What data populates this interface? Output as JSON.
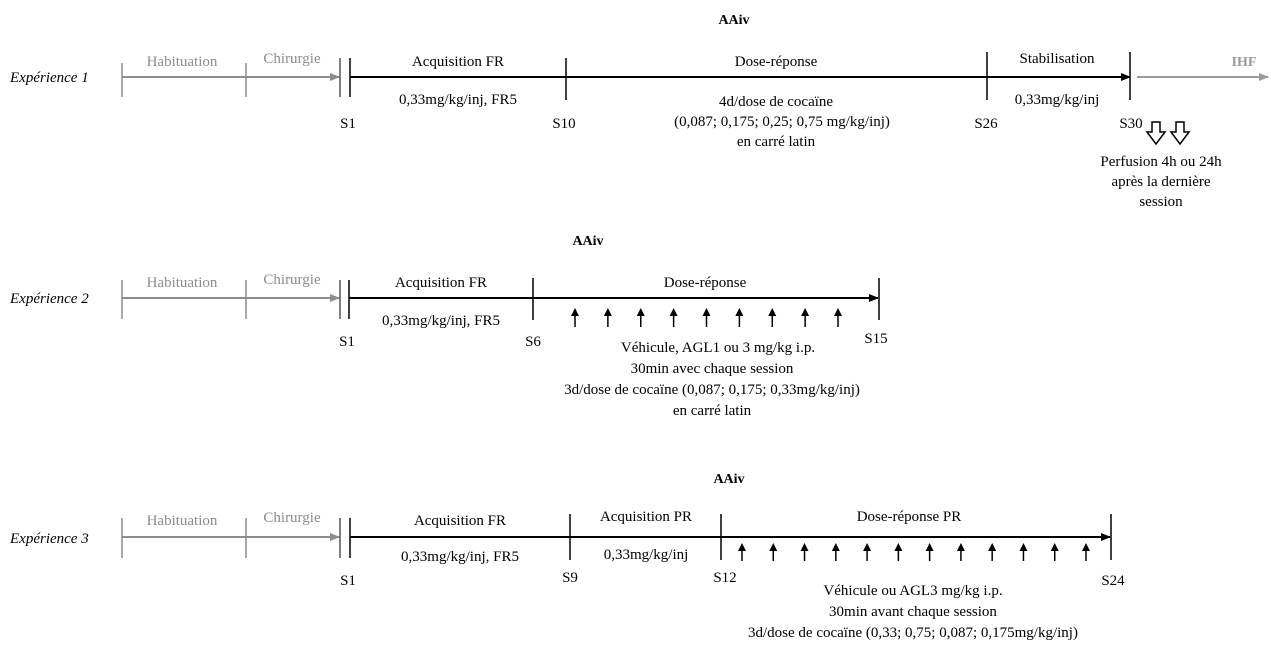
{
  "colors": {
    "main": "#000000",
    "pre": "#8c8c8c",
    "post": "#9a9a9a"
  },
  "experiments": [
    {
      "name": "Expérience 1",
      "method": "AAiv",
      "pre_phases": [
        "Habituation",
        "Chirurgie"
      ],
      "phases": [
        {
          "title": "Acquisition FR",
          "lines": [
            "0,33mg/kg/inj, FR5"
          ]
        },
        {
          "title": "Dose-réponse",
          "lines": [
            "4d/dose de cocaïne",
            "(0,087; 0,175; 0,25; 0,75 mg/kg/inj)",
            "en carré latin"
          ]
        },
        {
          "title": "Stabilisation",
          "lines": [
            "0,33mg/kg/inj"
          ]
        }
      ],
      "sessions": [
        "S1",
        "S10",
        "S26",
        "S30"
      ],
      "post_label": "IHF",
      "perfusion": [
        "Perfusion 4h ou 24h",
        "après la dernière",
        "session"
      ]
    },
    {
      "name": "Expérience 2",
      "method": "AAiv",
      "pre_phases": [
        "Habituation",
        "Chirurgie"
      ],
      "phases": [
        {
          "title": "Acquisition FR",
          "lines": [
            "0,33mg/kg/inj, FR5"
          ]
        },
        {
          "title": "Dose-réponse",
          "lines": []
        }
      ],
      "sessions": [
        "S1",
        "S6",
        "S15"
      ],
      "injection_arrow_count": 9,
      "treatment": [
        "Véhicule, AGL1 ou 3 mg/kg i.p.",
        "30min avec chaque session",
        "3d/dose de cocaïne (0,087; 0,175; 0,33mg/kg/inj)",
        "en carré latin"
      ]
    },
    {
      "name": "Expérience 3",
      "method": "AAiv",
      "pre_phases": [
        "Habituation",
        "Chirurgie"
      ],
      "phases": [
        {
          "title": "Acquisition FR",
          "lines": [
            "0,33mg/kg/inj, FR5"
          ]
        },
        {
          "title": "Acquisition PR",
          "lines": [
            "0,33mg/kg/inj"
          ]
        },
        {
          "title": "Dose-réponse PR",
          "lines": []
        }
      ],
      "sessions": [
        "S1",
        "S9",
        "S12",
        "S24"
      ],
      "injection_arrow_count": 12,
      "treatment": [
        "Véhicule ou AGL3 mg/kg i.p.",
        "30min avant chaque session",
        "3d/dose de cocaïne (0,33; 0,75; 0,087; 0,175mg/kg/inj)"
      ]
    }
  ]
}
